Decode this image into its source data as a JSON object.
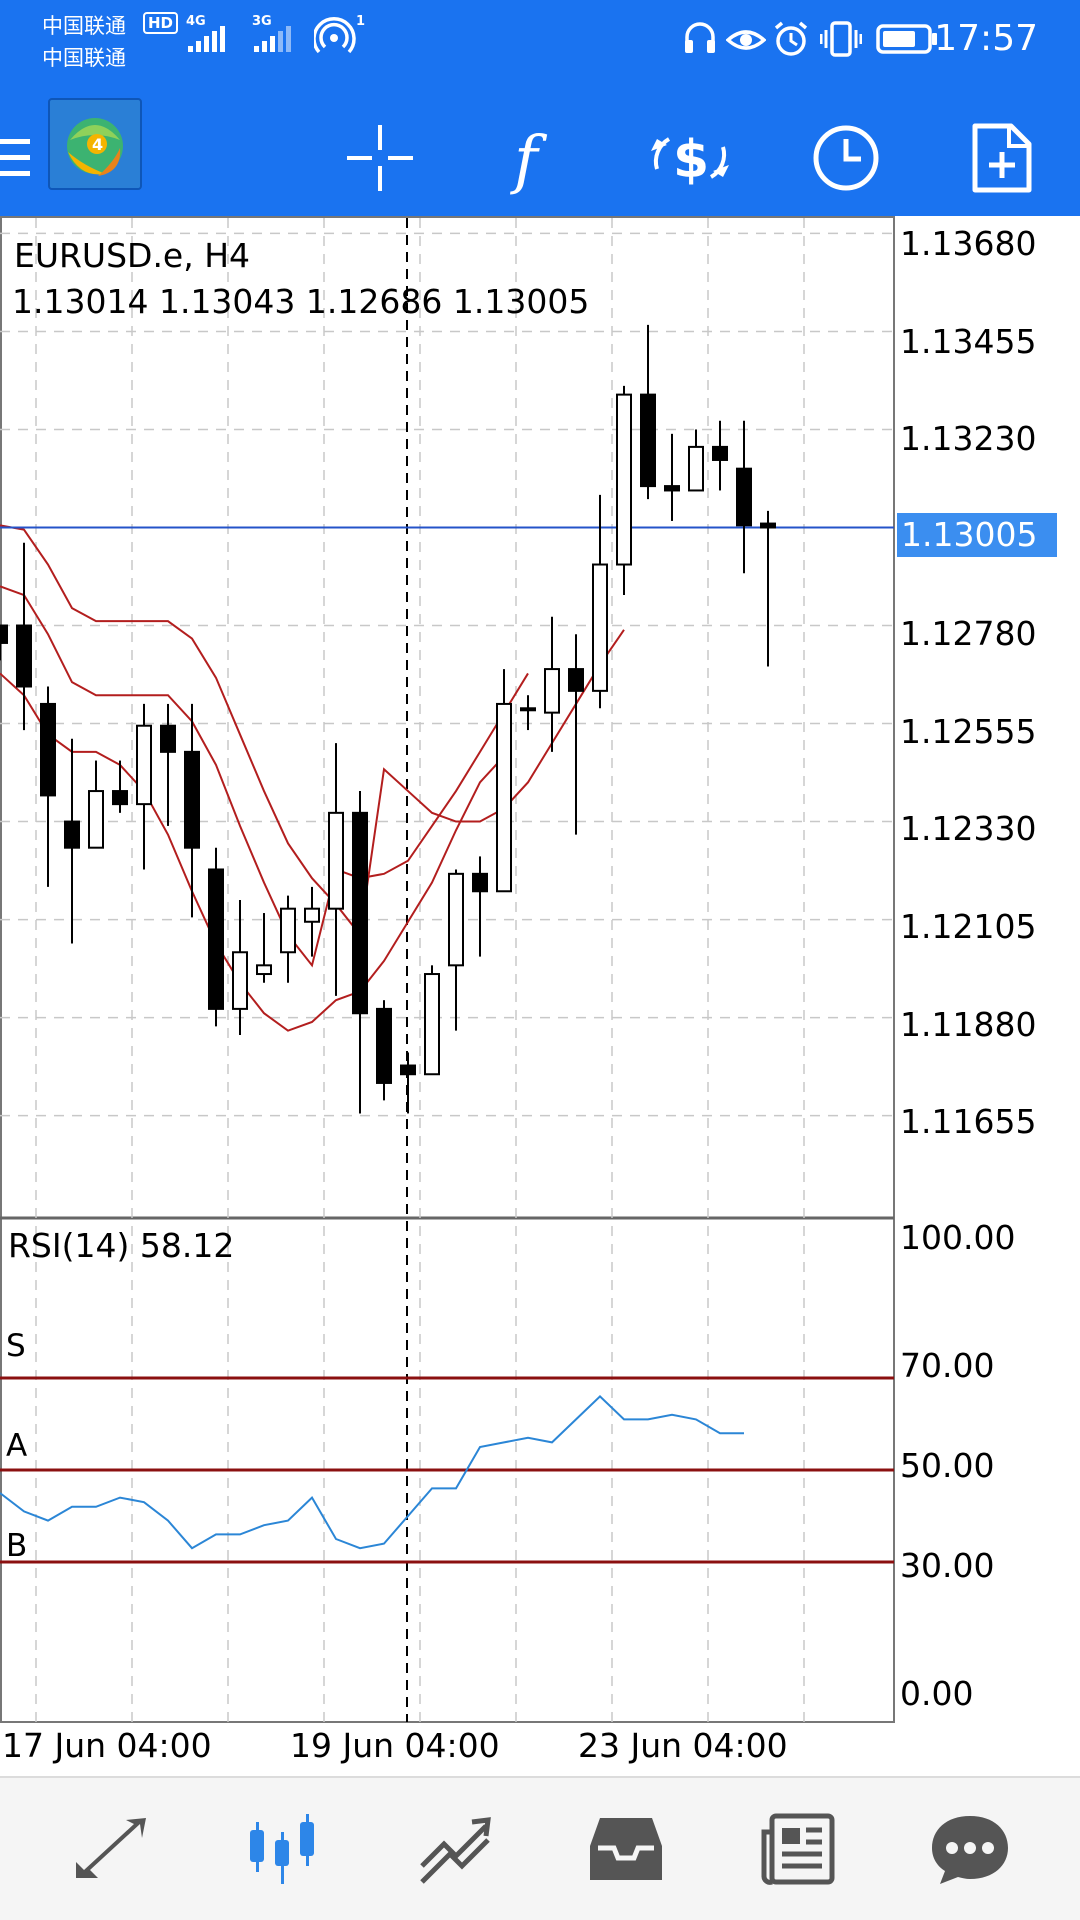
{
  "status_bar": {
    "carrier_1": "中国联通",
    "carrier_2": "中国联通",
    "hd_badge": "HD",
    "network_1": "4G",
    "network_2": "3G",
    "hotspot_count": "1",
    "time": "17:57",
    "icons": [
      "headphones-icon",
      "eye-icon",
      "alarm-icon",
      "vibrate-icon",
      "battery-icon"
    ]
  },
  "toolbar": {
    "items": [
      {
        "icon": "menu-icon"
      },
      {
        "icon": "metatrader-logo-icon"
      },
      {
        "icon": "crosshair-icon"
      },
      {
        "icon": "indicators-f-icon"
      },
      {
        "icon": "trade-dollar-icon"
      },
      {
        "icon": "timeframe-clock-icon"
      },
      {
        "icon": "new-order-icon"
      }
    ]
  },
  "chart": {
    "symbol": "EURUSD.e, H4",
    "ohlc": "1.13014 1.13043 1.12686 1.13005",
    "current_price": "1.13005",
    "price_labels": [
      "1.13680",
      "1.13455",
      "1.13230",
      "1.12780",
      "1.12555",
      "1.12330",
      "1.12105",
      "1.11880",
      "1.11655"
    ],
    "time_labels": [
      "17 Jun 04:00",
      "19 Jun 04:00",
      "23 Jun 04:00"
    ],
    "colors": {
      "bands": "#b31e1e",
      "current_line": "#2453c9",
      "rsi": "#2b86d6",
      "levels": "#8b1010"
    }
  },
  "chart_data": {
    "type": "candlestick",
    "price_range": [
      1.1142,
      1.1372
    ],
    "candles": [
      {
        "o": 1.1278,
        "h": 1.1278,
        "l": 1.127,
        "c": 1.1274
      },
      {
        "o": 1.1278,
        "h": 1.1297,
        "l": 1.1254,
        "c": 1.1264
      },
      {
        "o": 1.126,
        "h": 1.1264,
        "l": 1.1218,
        "c": 1.1239
      },
      {
        "o": 1.1233,
        "h": 1.1252,
        "l": 1.1205,
        "c": 1.1227
      },
      {
        "o": 1.1227,
        "h": 1.1247,
        "l": 1.1227,
        "c": 1.124
      },
      {
        "o": 1.124,
        "h": 1.1247,
        "l": 1.1235,
        "c": 1.1237
      },
      {
        "o": 1.1237,
        "h": 1.126,
        "l": 1.1222,
        "c": 1.1255
      },
      {
        "o": 1.1255,
        "h": 1.126,
        "l": 1.1232,
        "c": 1.1249
      },
      {
        "o": 1.1249,
        "h": 1.126,
        "l": 1.1211,
        "c": 1.1227
      },
      {
        "o": 1.1222,
        "h": 1.1227,
        "l": 1.1186,
        "c": 1.119
      },
      {
        "o": 1.119,
        "h": 1.1215,
        "l": 1.1184,
        "c": 1.1203
      },
      {
        "o": 1.1198,
        "h": 1.1212,
        "l": 1.1196,
        "c": 1.12
      },
      {
        "o": 1.1203,
        "h": 1.1216,
        "l": 1.1196,
        "c": 1.1213
      },
      {
        "o": 1.121,
        "h": 1.1218,
        "l": 1.1202,
        "c": 1.1213
      },
      {
        "o": 1.1213,
        "h": 1.1251,
        "l": 1.1193,
        "c": 1.1235
      },
      {
        "o": 1.1235,
        "h": 1.124,
        "l": 1.1166,
        "c": 1.1189
      },
      {
        "o": 1.119,
        "h": 1.1192,
        "l": 1.1169,
        "c": 1.1173
      },
      {
        "o": 1.1177,
        "h": 1.118,
        "l": 1.1166,
        "c": 1.1175
      },
      {
        "o": 1.1175,
        "h": 1.12,
        "l": 1.1175,
        "c": 1.1198
      },
      {
        "o": 1.12,
        "h": 1.1222,
        "l": 1.1185,
        "c": 1.1221
      },
      {
        "o": 1.1221,
        "h": 1.1225,
        "l": 1.1202,
        "c": 1.1217
      },
      {
        "o": 1.1217,
        "h": 1.1268,
        "l": 1.1217,
        "c": 1.126
      },
      {
        "o": 1.1259,
        "h": 1.1262,
        "l": 1.1254,
        "c": 1.1259
      },
      {
        "o": 1.1258,
        "h": 1.128,
        "l": 1.1249,
        "c": 1.1268
      },
      {
        "o": 1.1268,
        "h": 1.1276,
        "l": 1.123,
        "c": 1.1263
      },
      {
        "o": 1.1263,
        "h": 1.1308,
        "l": 1.1259,
        "c": 1.1292
      },
      {
        "o": 1.1292,
        "h": 1.1333,
        "l": 1.1285,
        "c": 1.1331
      },
      {
        "o": 1.1331,
        "h": 1.1347,
        "l": 1.1307,
        "c": 1.131
      },
      {
        "o": 1.131,
        "h": 1.1322,
        "l": 1.1302,
        "c": 1.1309
      },
      {
        "o": 1.1309,
        "h": 1.1323,
        "l": 1.1309,
        "c": 1.1319
      },
      {
        "o": 1.1319,
        "h": 1.1325,
        "l": 1.1309,
        "c": 1.1316
      },
      {
        "o": 1.1314,
        "h": 1.1325,
        "l": 1.129,
        "c": 1.1301
      },
      {
        "o": 1.13014,
        "h": 1.13043,
        "l": 1.12686,
        "c": 1.13005
      }
    ],
    "bands": [
      [
        1.1301,
        1.13,
        1.1292,
        1.1282,
        1.1279,
        1.1279,
        1.1279,
        1.1279,
        1.1275,
        1.1266,
        1.1253,
        1.124,
        1.1228,
        1.122,
        1.1214,
        1.1207,
        1.1245,
        1.124,
        1.1235,
        1.1233,
        1.1233,
        1.1236,
        1.1242,
        1.1251,
        1.126,
        1.1269,
        1.1277
      ],
      [
        1.1287,
        1.1285,
        1.1276,
        1.1265,
        1.1262,
        1.1262,
        1.1262,
        1.1262,
        1.1256,
        1.1246,
        1.1232,
        1.1219,
        1.1207,
        1.12,
        1.1222,
        1.122,
        1.1221,
        1.1224,
        1.1232,
        1.124,
        1.1249,
        1.1258,
        1.1267
      ],
      [
        1.1267,
        1.1262,
        1.1253,
        1.1249,
        1.1249,
        1.1246,
        1.124,
        1.123,
        1.1217,
        1.1205,
        1.1196,
        1.1189,
        1.1185,
        1.1187,
        1.1192,
        1.1194,
        1.1201,
        1.121,
        1.1219,
        1.1231,
        1.1242,
        1.1248
      ]
    ],
    "rsi": {
      "range": [
        0,
        100
      ],
      "levels": [
        {
          "value": 70,
          "label": "S"
        },
        {
          "value": 50,
          "label": "A"
        },
        {
          "value": 30,
          "label": "B"
        }
      ],
      "values": [
        45,
        41,
        39,
        42,
        42,
        44,
        43,
        39,
        33,
        36,
        36,
        38,
        39,
        44,
        35,
        33,
        34,
        40,
        46,
        46,
        55,
        56,
        57,
        56,
        61,
        66,
        61,
        61,
        62,
        61,
        58,
        58
      ],
      "label_prefix": "RSI(14)",
      "label_value": "58.12",
      "scale_labels": [
        "100.00",
        "70.00",
        "50.00",
        "30.00",
        "0.00"
      ]
    }
  },
  "bottom_nav": {
    "items": [
      {
        "icon": "quotes-arrows-icon",
        "active": false
      },
      {
        "icon": "chart-candles-icon",
        "active": true
      },
      {
        "icon": "trade-trend-icon",
        "active": false
      },
      {
        "icon": "history-inbox-icon",
        "active": false
      },
      {
        "icon": "news-icon",
        "active": false
      },
      {
        "icon": "chat-icon",
        "active": false
      }
    ]
  }
}
